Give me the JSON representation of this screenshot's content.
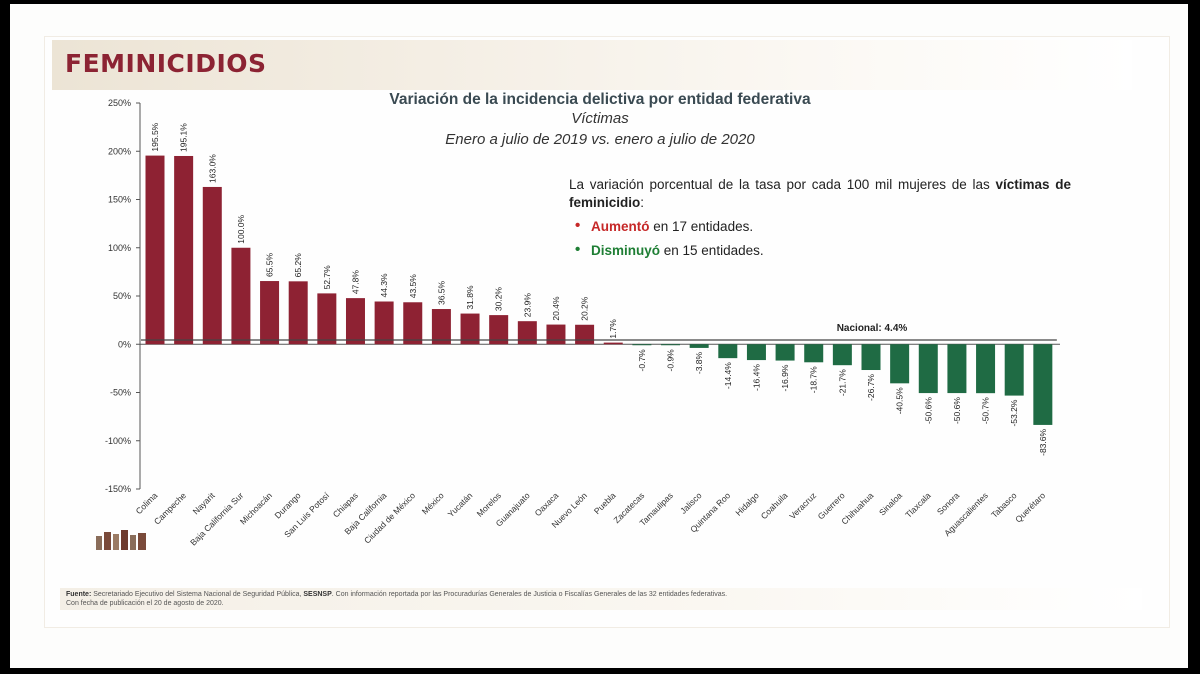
{
  "page": {
    "title": "FEMINICIDIOS"
  },
  "chart_header": {
    "title": "Variación de la incidencia delictiva por entidad federativa",
    "subtitle1": "Víctimas",
    "subtitle2": "Enero a julio de 2019 vs. enero a julio de 2020"
  },
  "note": {
    "text": "La variación porcentual de la tasa por cada 100 mil mujeres de las",
    "bold": "víctimas de feminicidio",
    "colon": ":",
    "up_word": "Aumentó",
    "up_rest": " en 17 entidades.",
    "down_word": "Disminuyó",
    "down_rest": " en 15 entidades."
  },
  "footer": {
    "label": "Fuente:",
    "text1": " Secretariado Ejecutivo del Sistema Nacional de Seguridad Pública, ",
    "sesnsp": "SESNSP",
    "text2": ". Con información reportada por las Procuradurías Generales de Justicia o Fiscalías Generales de las 32 entidades federativas.",
    "line2": "Con fecha de publicación el 20 de agosto de 2020."
  },
  "colors": {
    "increase": "#8e2233",
    "decrease": "#1f6b44",
    "title_accent": "#8c2333"
  },
  "chart_data": {
    "type": "bar",
    "categories": [
      "Colima",
      "Campeche",
      "Nayarit",
      "Baja California Sur",
      "Michoacán",
      "Durango",
      "San Luis Potosí",
      "Chiapas",
      "Baja California",
      "Ciudad de México",
      "México",
      "Yucatán",
      "Morelos",
      "Guanajuato",
      "Oaxaca",
      "Nuevo León",
      "Puebla",
      "Zacatecas",
      "Tamaulipas",
      "Jalisco",
      "Quintana Roo",
      "Hidalgo",
      "Coahuila",
      "Veracruz",
      "Guerrero",
      "Chihuahua",
      "Sinaloa",
      "Tlaxcala",
      "Sonora",
      "Aguascalientes",
      "Tabasco",
      "Querétaro"
    ],
    "values": [
      195.5,
      195.1,
      163.0,
      100.0,
      65.5,
      65.2,
      52.7,
      47.8,
      44.3,
      43.5,
      36.5,
      31.8,
      30.2,
      23.9,
      20.4,
      20.2,
      1.7,
      -0.7,
      -0.9,
      -3.8,
      -14.4,
      -16.4,
      -16.9,
      -18.7,
      -21.7,
      -26.7,
      -40.5,
      -50.6,
      -50.6,
      -50.7,
      -53.2,
      -83.6
    ],
    "labels": [
      "195.5%",
      "195.1%",
      "163.0%",
      "100.0%",
      "65.5%",
      "65.2%",
      "52.7%",
      "47.8%",
      "44.3%",
      "43.5%",
      "36.5%",
      "31.8%",
      "30.2%",
      "23.9%",
      "20.4%",
      "20.2%",
      "1.7%",
      "-0.7%",
      "-0.9%",
      "-3.8%",
      "-14.4%",
      "-16.4%",
      "-16.9%",
      "-18.7%",
      "-21.7%",
      "-26.7%",
      "-40.5%",
      "-50.6%",
      "-50.6%",
      "-50.7%",
      "-53.2%",
      "-83.6%"
    ],
    "ylim": [
      -150,
      250
    ],
    "yticks": [
      250,
      200,
      150,
      100,
      50,
      0,
      -50,
      -100,
      -150
    ],
    "ytick_labels": [
      "250%",
      "200%",
      "150%",
      "100%",
      "50%",
      "0%",
      "-50%",
      "-100%",
      "-150%"
    ],
    "reference_line": {
      "value": 4.4,
      "label": "Nacional: 4.4%"
    },
    "grid": false
  }
}
